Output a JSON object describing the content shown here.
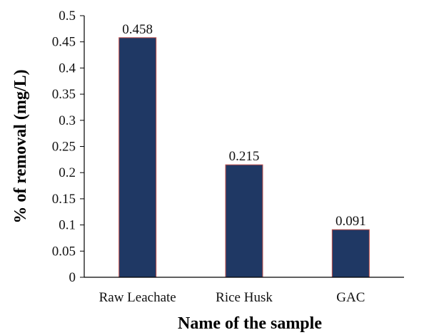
{
  "chart_data": {
    "type": "bar",
    "title": "",
    "xlabel": "Name of the sample",
    "ylabel": "% of removal (mg/L)",
    "categories": [
      "Raw Leachate",
      "Rice Husk",
      "GAC"
    ],
    "values": [
      0.458,
      0.215,
      0.091
    ],
    "data_labels": [
      "0.458",
      "0.215",
      "0.091"
    ],
    "ylim": [
      0,
      0.5
    ],
    "yticks": [
      "0",
      "0.05",
      "0.1",
      "0.15",
      "0.2",
      "0.25",
      "0.3",
      "0.35",
      "0.4",
      "0.45",
      "0.5"
    ],
    "grid": false,
    "legend": "none",
    "colors": {
      "bar_fill": "#1f3864",
      "bar_edge": "#c0504d",
      "axis": "#000000"
    }
  }
}
